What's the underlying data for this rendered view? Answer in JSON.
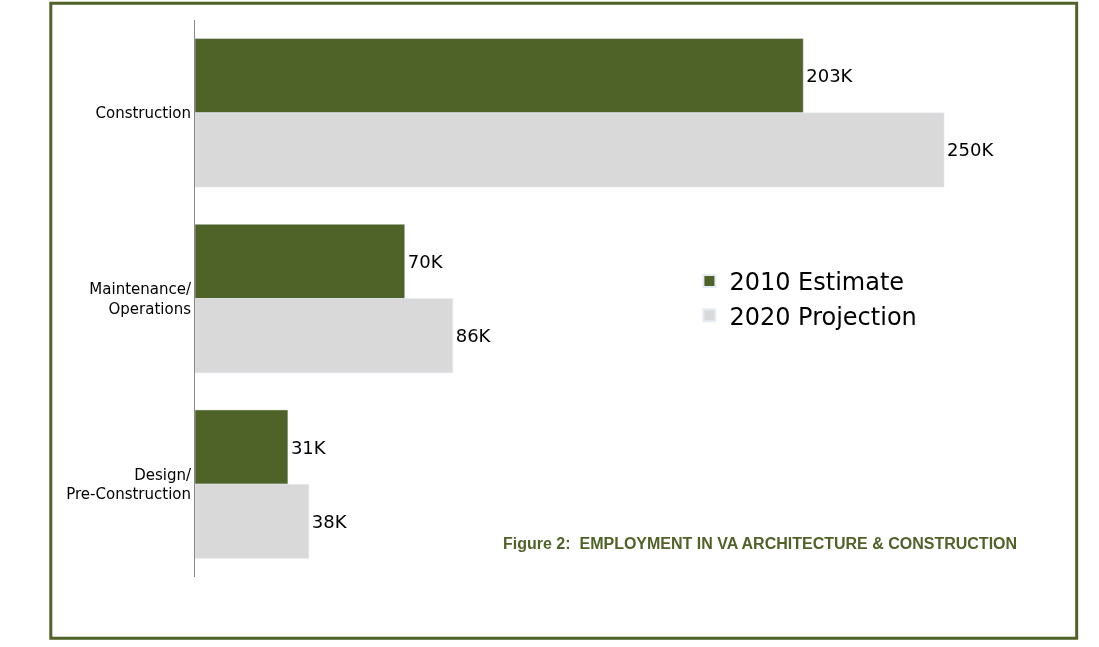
{
  "chart_data": {
    "type": "bar",
    "orientation": "horizontal",
    "title": "Figure 2:  EMPLOYMENT IN VA ARCHITECTURE & CONSTRUCTION",
    "categories": [
      "Construction",
      "Maintenance/\nOperations",
      "Design/\nPre-Construction"
    ],
    "series": [
      {
        "name": "2010 Estimate",
        "color": "#4f6228",
        "values": [
          203,
          70,
          31
        ],
        "value_labels": [
          "203K",
          "70K",
          "31K"
        ]
      },
      {
        "name": "2020 Projection",
        "color": "#d9d9d9",
        "values": [
          250,
          86,
          38
        ],
        "value_labels": [
          "250K",
          "86K",
          "38K"
        ]
      }
    ],
    "legend": "right"
  }
}
